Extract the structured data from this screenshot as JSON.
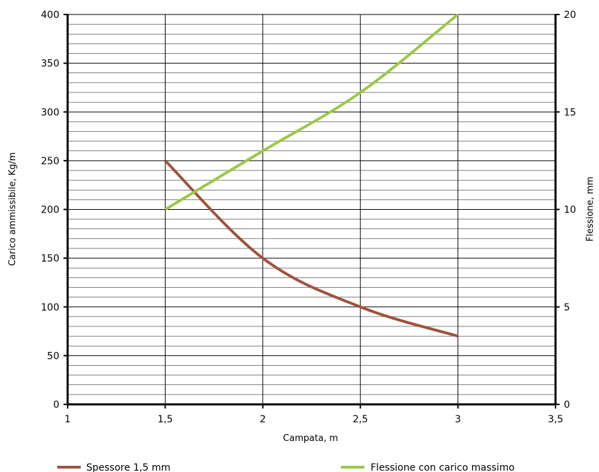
{
  "chart_data": {
    "type": "line",
    "title": "",
    "xlabel": "Campata, m",
    "ylabel": "Carico ammissibile, Kg/m",
    "y2label": "Flessione, mm",
    "xlim": [
      1,
      3.5
    ],
    "ylim": [
      0,
      400
    ],
    "y2lim": [
      0,
      20
    ],
    "x_ticks": [
      "1",
      "1,5",
      "2",
      "2,5",
      "3",
      "3,5"
    ],
    "y_ticks": [
      "0",
      "50",
      "100",
      "150",
      "200",
      "250",
      "300",
      "350",
      "400"
    ],
    "y2_ticks": [
      "0",
      "5",
      "10",
      "15",
      "20"
    ],
    "grid": true,
    "legend_position": "bottom",
    "series": [
      {
        "name": "Spessore 1,5 mm",
        "axis": "left",
        "color": "#A0523C",
        "x": [
          1.5,
          2,
          2.5,
          3
        ],
        "values": [
          250,
          150,
          100,
          70
        ]
      },
      {
        "name": "Flessione con carico massimo",
        "axis": "right",
        "color": "#9BC847",
        "x": [
          1.5,
          2,
          2.5,
          3
        ],
        "values": [
          10,
          13,
          16,
          20
        ]
      }
    ]
  }
}
